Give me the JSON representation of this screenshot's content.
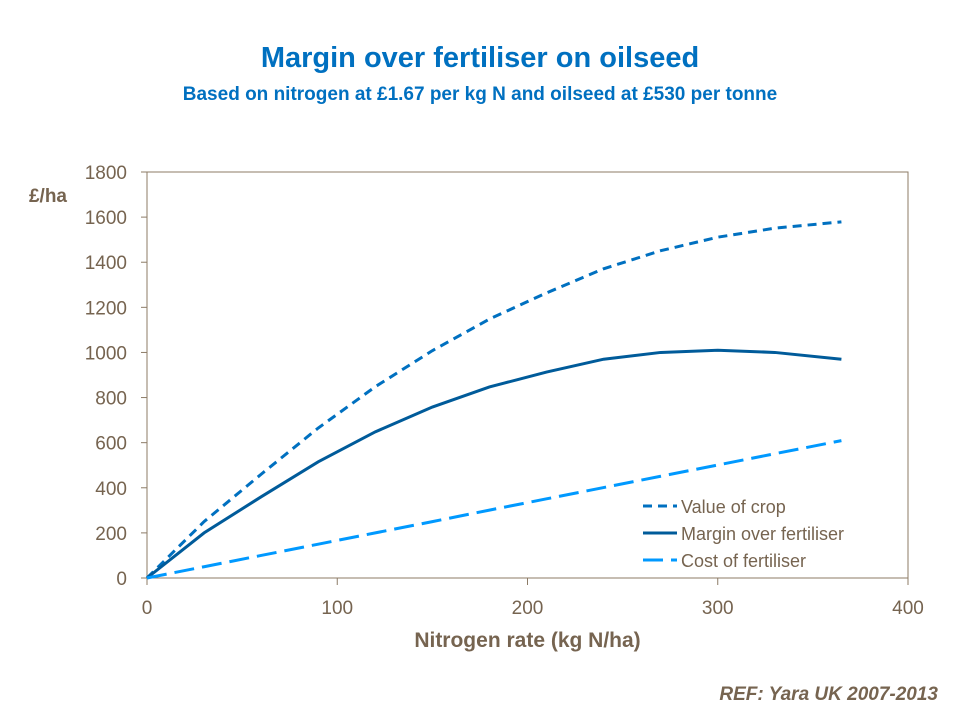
{
  "chart_data": {
    "type": "line",
    "title": "Margin over fertiliser on oilseed",
    "subtitle": "Based on nitrogen at £1.67 per kg N and oilseed at £530 per tonne",
    "xlabel": "Nitrogen rate (kg N/ha)",
    "ylabel": "£/ha",
    "xlim": [
      0,
      400
    ],
    "ylim": [
      0,
      1800
    ],
    "xticks": [
      0,
      100,
      200,
      300,
      400
    ],
    "yticks": [
      0,
      200,
      400,
      600,
      800,
      1000,
      1200,
      1400,
      1600,
      1800
    ],
    "grid": false,
    "legend_position": "bottom-right",
    "x": [
      0,
      30,
      60,
      90,
      120,
      150,
      180,
      210,
      240,
      270,
      300,
      330,
      365
    ],
    "series": [
      {
        "name": "Value of crop",
        "color": "#0070c0",
        "dash": "dash",
        "values": [
          0,
          250,
          460,
          665,
          848,
          1008,
          1148,
          1264,
          1371,
          1451,
          1511,
          1551,
          1579
        ]
      },
      {
        "name": "Margin over fertiliser",
        "color": "#005b9a",
        "dash": "solid",
        "values": [
          0,
          200,
          360,
          515,
          648,
          758,
          847,
          913,
          970,
          1000,
          1010,
          1000,
          970
        ]
      },
      {
        "name": "Cost of fertiliser",
        "color": "#0099ff",
        "dash": "longdash",
        "values": [
          0,
          50,
          100,
          150,
          200,
          250,
          301,
          351,
          401,
          451,
          501,
          551,
          609
        ]
      }
    ]
  },
  "ref": "REF: Yara UK 2007-2013"
}
